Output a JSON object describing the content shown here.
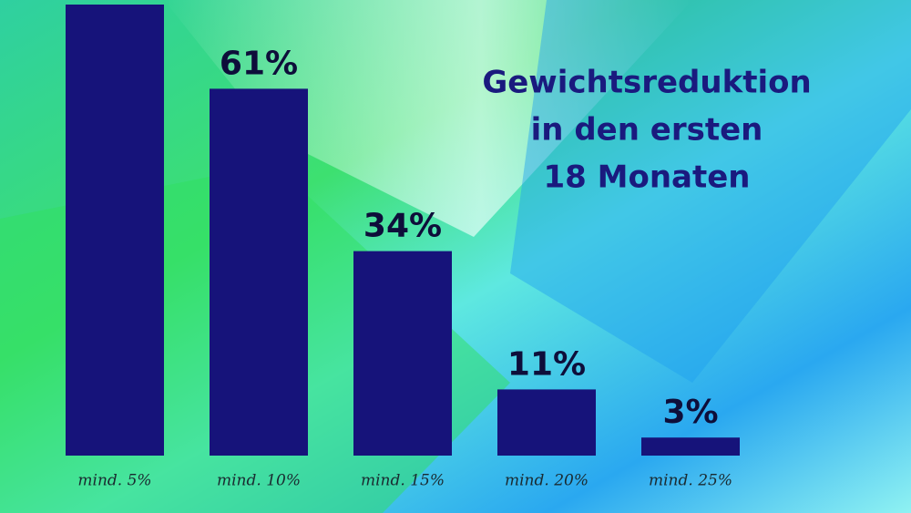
{
  "chart_data": {
    "type": "bar",
    "title": [
      "Gewichtsreduktion",
      "in den ersten",
      "18 Monaten"
    ],
    "categories": [
      "mind. 5%",
      "mind. 10%",
      "mind. 15%",
      "mind. 20%",
      "mind. 25%"
    ],
    "values": [
      75,
      61,
      34,
      11,
      3
    ],
    "value_labels": [
      null,
      "61%",
      "34%",
      "11%",
      "3%"
    ],
    "color": "#16137a"
  }
}
